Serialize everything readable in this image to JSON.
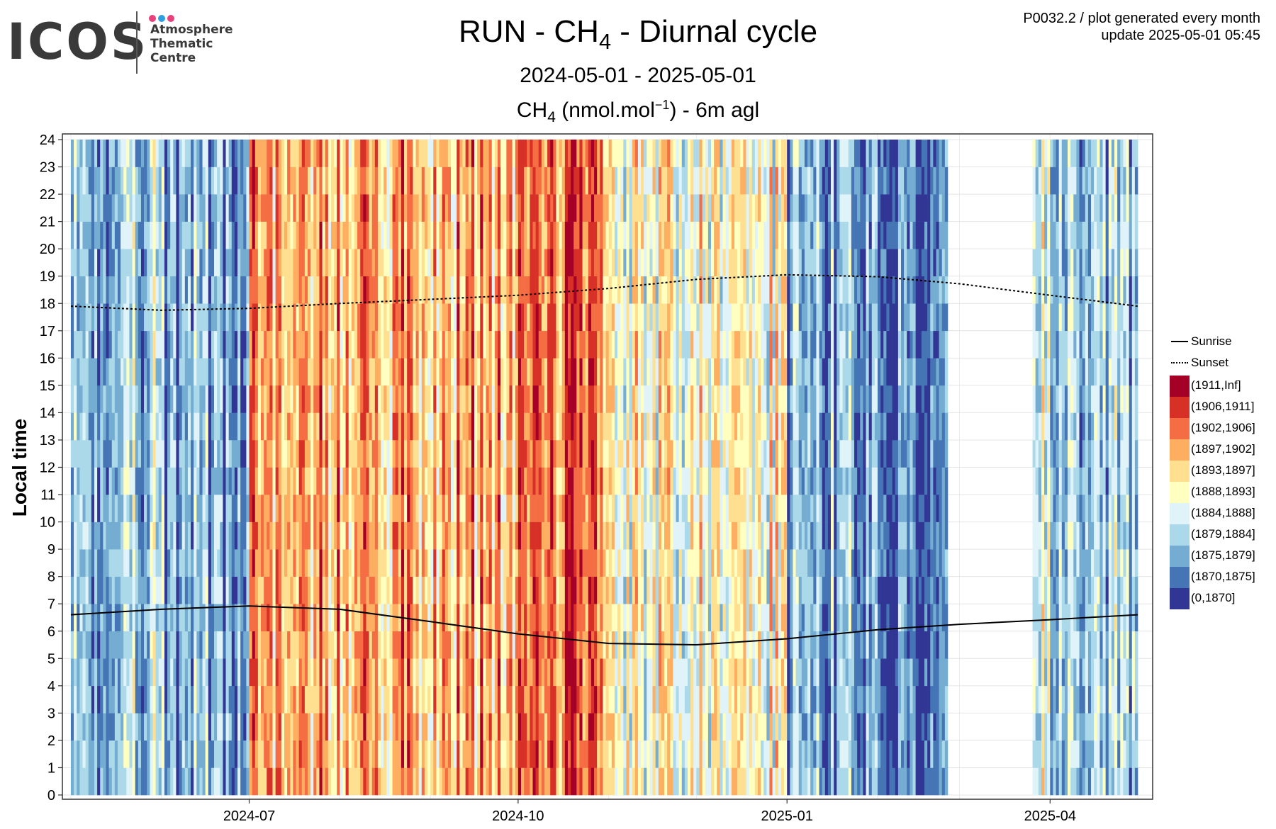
{
  "logo": {
    "word": "ICOS",
    "lines": [
      "Atmosphere",
      "Thematic",
      "Centre"
    ],
    "dot_colors": [
      "#e8417e",
      "#2f9fe0",
      "#e8417e"
    ]
  },
  "header": {
    "title_prefix": "RUN - CH",
    "title_sub": "4",
    "title_suffix": " - Diurnal cycle",
    "period": "2024-05-01 - 2025-05-01",
    "subtitle_prefix": "CH",
    "subtitle_sub": "4",
    "subtitle_mid": " (nmol.mol",
    "subtitle_sup": "−1",
    "subtitle_suffix": ") - 6m agl",
    "meta_line1": "P0032.2 / plot generated every month",
    "meta_line2": "update  2025-05-01 05:45"
  },
  "chart_data": {
    "type": "heatmap",
    "x_range": [
      "2024-05-01",
      "2025-05-01"
    ],
    "x_ticks": [
      "2024-07",
      "2024-10",
      "2025-01",
      "2025-04"
    ],
    "y_label": "Local time",
    "y_range": [
      0,
      24
    ],
    "y_ticks": [
      0,
      1,
      2,
      3,
      4,
      5,
      6,
      7,
      8,
      9,
      10,
      11,
      12,
      13,
      14,
      15,
      16,
      17,
      18,
      19,
      20,
      21,
      22,
      23,
      24
    ],
    "grid": true,
    "legend_position": "right",
    "bins": [
      {
        "label": "(1911,Inf]",
        "color": "#a50026"
      },
      {
        "label": "(1906,1911]",
        "color": "#d73027"
      },
      {
        "label": "(1902,1906]",
        "color": "#f46d43"
      },
      {
        "label": "(1897,1902]",
        "color": "#fdae61"
      },
      {
        "label": "(1893,1897]",
        "color": "#fee090"
      },
      {
        "label": "(1888,1893]",
        "color": "#ffffbf"
      },
      {
        "label": "(1884,1888]",
        "color": "#e0f3f8"
      },
      {
        "label": "(1879,1884]",
        "color": "#abd9e9"
      },
      {
        "label": "(1875,1879]",
        "color": "#74add1"
      },
      {
        "label": "(1870,1875]",
        "color": "#4575b4"
      },
      {
        "label": "(0,1870]",
        "color": "#313695"
      }
    ],
    "bin_band_note": "dominant bin index per month (0 = highest concentration); approximate reading",
    "monthly_dominant_bin": [
      {
        "month": "2024-05",
        "bin": 7
      },
      {
        "month": "2024-06",
        "bin": 8
      },
      {
        "month": "2024-07",
        "bin": 3
      },
      {
        "month": "2024-08",
        "bin": 3
      },
      {
        "month": "2024-09",
        "bin": 3
      },
      {
        "month": "2024-10",
        "bin": 2
      },
      {
        "month": "2024-11",
        "bin": 5
      },
      {
        "month": "2024-12",
        "bin": 5
      },
      {
        "month": "2025-01",
        "bin": 8
      },
      {
        "month": "2025-02",
        "bin": 9
      },
      {
        "month": "2025-03",
        "bin": null
      },
      {
        "month": "2025-04",
        "bin": 7
      }
    ],
    "missing_data": [
      [
        "2025-02-25",
        "2025-03-26"
      ]
    ],
    "lines": [
      {
        "name": "Sunrise",
        "style": "solid",
        "points": [
          {
            "x": "2024-05-01",
            "y": 6.6
          },
          {
            "x": "2024-06-01",
            "y": 6.8
          },
          {
            "x": "2024-07-01",
            "y": 6.92
          },
          {
            "x": "2024-08-01",
            "y": 6.8
          },
          {
            "x": "2024-09-01",
            "y": 6.35
          },
          {
            "x": "2024-10-01",
            "y": 5.9
          },
          {
            "x": "2024-11-01",
            "y": 5.55
          },
          {
            "x": "2024-12-01",
            "y": 5.5
          },
          {
            "x": "2025-01-01",
            "y": 5.72
          },
          {
            "x": "2025-02-01",
            "y": 6.05
          },
          {
            "x": "2025-03-01",
            "y": 6.25
          },
          {
            "x": "2025-04-01",
            "y": 6.42
          },
          {
            "x": "2025-05-01",
            "y": 6.6
          }
        ]
      },
      {
        "name": "Sunset",
        "style": "dotted",
        "points": [
          {
            "x": "2024-05-01",
            "y": 17.9
          },
          {
            "x": "2024-06-01",
            "y": 17.75
          },
          {
            "x": "2024-07-01",
            "y": 17.82
          },
          {
            "x": "2024-08-01",
            "y": 18.0
          },
          {
            "x": "2024-09-01",
            "y": 18.15
          },
          {
            "x": "2024-10-01",
            "y": 18.3
          },
          {
            "x": "2024-11-01",
            "y": 18.55
          },
          {
            "x": "2024-12-01",
            "y": 18.88
          },
          {
            "x": "2025-01-01",
            "y": 19.05
          },
          {
            "x": "2025-02-01",
            "y": 18.98
          },
          {
            "x": "2025-03-01",
            "y": 18.72
          },
          {
            "x": "2025-04-01",
            "y": 18.3
          },
          {
            "x": "2025-05-01",
            "y": 17.9
          }
        ]
      }
    ]
  }
}
